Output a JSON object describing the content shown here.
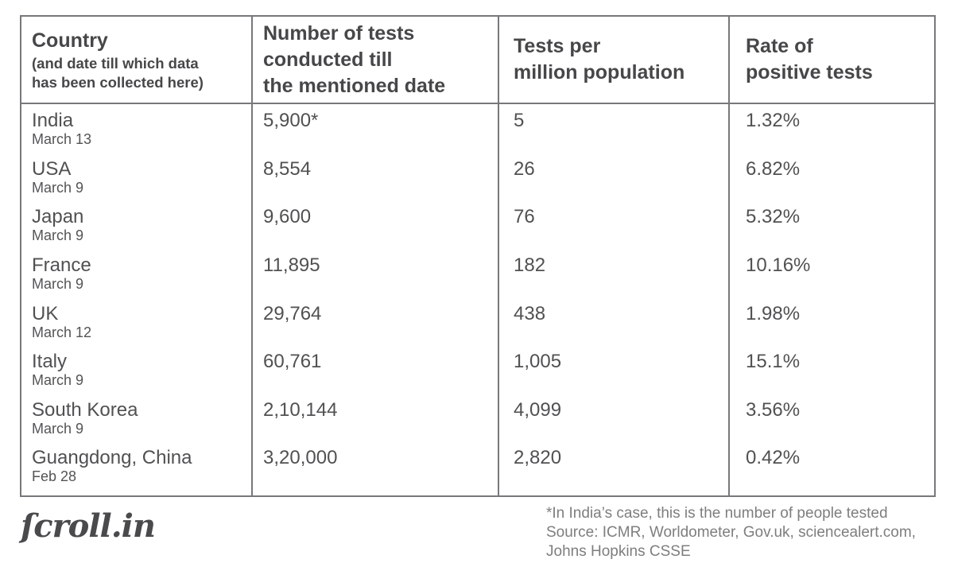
{
  "table": {
    "headers": {
      "country_title": "Country",
      "country_subtitle_line1": "(and date till which data",
      "country_subtitle_line2": "has been collected here)",
      "tests_line1": "Number of tests",
      "tests_line2": "conducted till",
      "tests_line3": "the mentioned date",
      "per_million_line1": "Tests per",
      "per_million_line2": "million population",
      "rate_line1": "Rate of",
      "rate_line2": "positive tests"
    },
    "rows": [
      {
        "country": "India",
        "date": "March 13",
        "tests": "5,900*",
        "per_million": "5",
        "positive_rate": "1.32%"
      },
      {
        "country": "USA",
        "date": "March 9",
        "tests": "8,554",
        "per_million": "26",
        "positive_rate": "6.82%"
      },
      {
        "country": "Japan",
        "date": "March 9",
        "tests": "9,600",
        "per_million": "76",
        "positive_rate": "5.32%"
      },
      {
        "country": "France",
        "date": "March 9",
        "tests": "11,895",
        "per_million": "182",
        "positive_rate": "10.16%"
      },
      {
        "country": "UK",
        "date": "March 12",
        "tests": "29,764",
        "per_million": "438",
        "positive_rate": "1.98%"
      },
      {
        "country": "Italy",
        "date": "March 9",
        "tests": "60,761",
        "per_million": "1,005",
        "positive_rate": "15.1%"
      },
      {
        "country": "South Korea",
        "date": "March 9",
        "tests": "2,10,144",
        "per_million": "4,099",
        "positive_rate": "3.56%"
      },
      {
        "country": "Guangdong, China",
        "date": "Feb 28",
        "tests": "3,20,000",
        "per_million": "2,820",
        "positive_rate": "0.42%"
      }
    ]
  },
  "footer": {
    "logo_text": "ſcroll.in",
    "note_line1": "*In India’s case, this is the number of people tested",
    "note_line2": "Source: ICMR, Worldometer, Gov.uk, sciencealert.com,",
    "note_line3": "Johns Hopkins CSSE"
  },
  "colors": {
    "text": "#4e4e50",
    "border": "#77787b",
    "note_text": "#7e7e7e"
  },
  "chart_data": {
    "type": "table",
    "columns": [
      "Country (and date till which data has been collected here)",
      "Number of tests conducted till the mentioned date",
      "Tests per million population",
      "Rate of positive tests"
    ],
    "rows": [
      [
        "India (March 13)",
        "5,900*",
        5,
        "1.32%"
      ],
      [
        "USA (March 9)",
        "8,554",
        26,
        "6.82%"
      ],
      [
        "Japan (March 9)",
        "9,600",
        76,
        "5.32%"
      ],
      [
        "France (March 9)",
        "11,895",
        182,
        "10.16%"
      ],
      [
        "UK (March 12)",
        "29,764",
        438,
        "1.98%"
      ],
      [
        "Italy (March 9)",
        "60,761",
        1005,
        "15.1%"
      ],
      [
        "South Korea (March 9)",
        "2,10,144",
        4099,
        "3.56%"
      ],
      [
        "Guangdong, China (Feb 28)",
        "3,20,000",
        2820,
        "0.42%"
      ]
    ]
  }
}
